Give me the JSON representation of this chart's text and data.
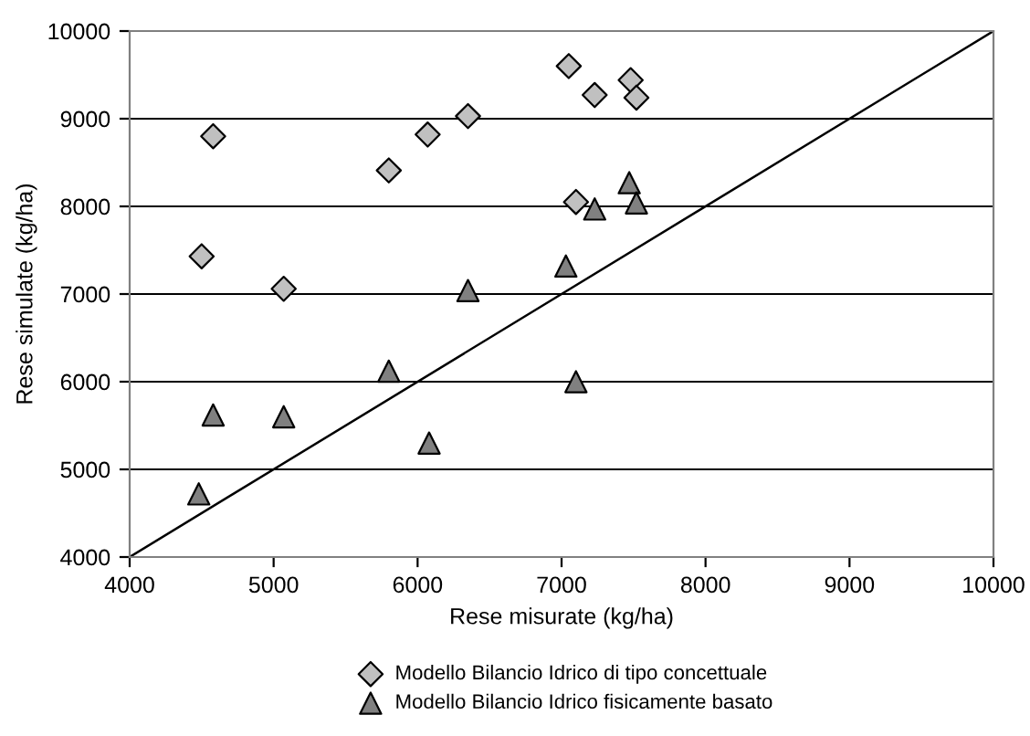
{
  "chart_data": {
    "type": "scatter",
    "xlabel": "Rese misurate (kg/ha)",
    "ylabel": "Rese simulate (kg/ha)",
    "xlim": [
      4000,
      10000
    ],
    "ylim": [
      4000,
      10000
    ],
    "xticks": [
      4000,
      5000,
      6000,
      7000,
      8000,
      9000,
      10000
    ],
    "yticks": [
      4000,
      5000,
      6000,
      7000,
      8000,
      9000,
      10000
    ],
    "grid": "y",
    "legend": "bottom",
    "series": [
      {
        "name": "Modello Bilancio Idrico di tipo concettuale",
        "color": "#c0c0c0",
        "marker": "diamond",
        "x": [
          4500,
          4580,
          5070,
          5800,
          6070,
          6350,
          7050,
          7100,
          7230,
          7480,
          7520
        ],
        "values": [
          7430,
          8800,
          7060,
          8410,
          8820,
          9030,
          9600,
          8050,
          9270,
          9440,
          9240
        ]
      },
      {
        "name": "Modello Bilancio Idrico fisicamente basato",
        "color": "#808080",
        "marker": "triangle",
        "x": [
          4480,
          4580,
          5070,
          5800,
          6080,
          6350,
          7030,
          7100,
          7230,
          7470,
          7520
        ],
        "values": [
          4720,
          5620,
          5600,
          6120,
          5300,
          7040,
          7320,
          6000,
          7970,
          8270,
          8040
        ]
      },
      {
        "type": "line",
        "color": "#000000",
        "marker": "none",
        "x": [
          4000,
          10000
        ],
        "values": [
          4000,
          10000
        ]
      }
    ]
  }
}
